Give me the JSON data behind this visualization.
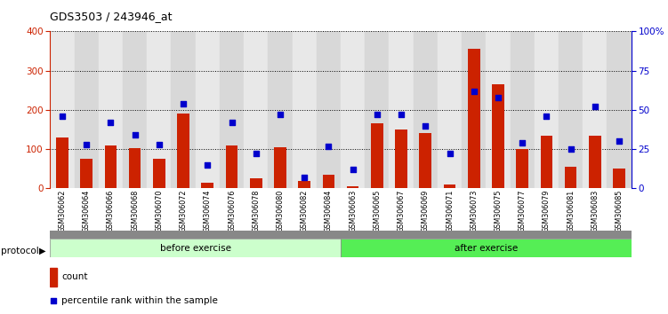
{
  "title": "GDS3503 / 243946_at",
  "samples": [
    "GSM306062",
    "GSM306064",
    "GSM306066",
    "GSM306068",
    "GSM306070",
    "GSM306072",
    "GSM306074",
    "GSM306076",
    "GSM306078",
    "GSM306080",
    "GSM306082",
    "GSM306084",
    "GSM306063",
    "GSM306065",
    "GSM306067",
    "GSM306069",
    "GSM306071",
    "GSM306073",
    "GSM306075",
    "GSM306077",
    "GSM306079",
    "GSM306081",
    "GSM306083",
    "GSM306085"
  ],
  "counts": [
    130,
    75,
    110,
    103,
    75,
    190,
    15,
    110,
    25,
    105,
    20,
    35,
    5,
    165,
    150,
    140,
    10,
    355,
    265,
    100,
    135,
    55,
    135,
    50
  ],
  "percentiles": [
    46,
    28,
    42,
    34,
    28,
    54,
    15,
    42,
    22,
    47,
    7,
    27,
    12,
    47,
    47,
    40,
    22,
    62,
    58,
    29,
    46,
    25,
    52,
    30
  ],
  "before_count": 12,
  "after_count": 12,
  "bar_color": "#cc2200",
  "dot_color": "#0000cc",
  "before_color": "#ccffcc",
  "after_color": "#55ee55",
  "left_axis_color": "#cc2200",
  "right_axis_color": "#0000cc",
  "ylim_left": [
    0,
    400
  ],
  "ylim_right": [
    0,
    100
  ],
  "left_ticks": [
    0,
    100,
    200,
    300,
    400
  ],
  "right_ticks": [
    0,
    25,
    50,
    75,
    100
  ],
  "right_tick_labels": [
    "0",
    "25",
    "50",
    "75",
    "100%"
  ],
  "bg_color_even": "#e8e8e8",
  "bg_color_odd": "#d8d8d8"
}
